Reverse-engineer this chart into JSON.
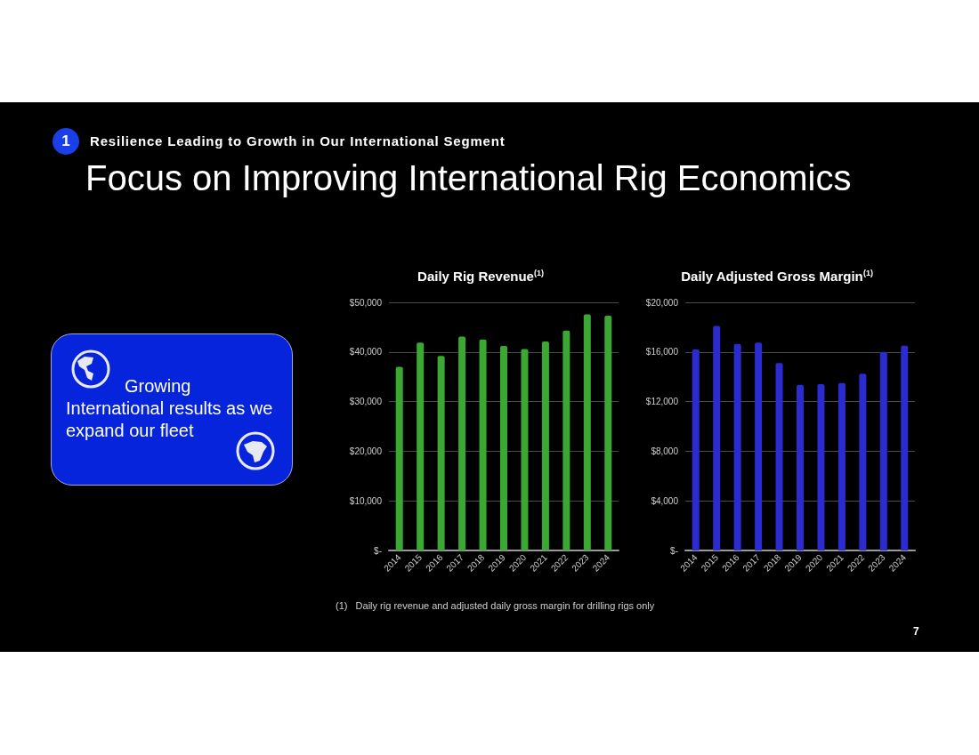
{
  "chart_data": [
    {
      "type": "other",
      "title": "Focus on Improving International Rig Economics",
      "subtitle": "Resilience Leading to Growth in Our International Segment",
      "annotations": [
        "1",
        "Growing International results as we expand our fleet",
        "(1)   Daily rig revenue and adjusted daily gross margin for drilling rigs only",
        "7"
      ]
    },
    {
      "type": "bar",
      "title": "Daily Rig Revenue$^{(1)}$",
      "categories": [
        "2014",
        "2015",
        "2016",
        "2017",
        "2018",
        "2019",
        "2020",
        "2021",
        "2022",
        "2023",
        "2024"
      ],
      "values": [
        37000,
        41900,
        39200,
        43100,
        42500,
        41200,
        40600,
        42100,
        44300,
        47600,
        47300
      ],
      "color": "#3aa832",
      "ylim": [
        0,
        50000
      ],
      "yticks": [
        {
          "value": 0,
          "label": "$-"
        },
        {
          "value": 10000,
          "label": "$10,000"
        },
        {
          "value": 20000,
          "label": "$20,000"
        },
        {
          "value": 30000,
          "label": "$30,000"
        },
        {
          "value": 40000,
          "label": "$40,000"
        },
        {
          "value": 50000,
          "label": "$50,000"
        }
      ],
      "grid": "y"
    },
    {
      "type": "bar",
      "title": "Daily Adjusted Gross Margin$^{(1)}$",
      "categories": [
        "2014",
        "2015",
        "2016",
        "2017",
        "2018",
        "2019",
        "2020",
        "2021",
        "2022",
        "2023",
        "2024"
      ],
      "values": [
        16200,
        18100,
        16650,
        16750,
        15100,
        13350,
        13400,
        13500,
        14250,
        16000,
        16500
      ],
      "color": "#2b2bd0",
      "ylim": [
        0,
        20000
      ],
      "yticks": [
        {
          "value": 0,
          "label": "$-"
        },
        {
          "value": 4000,
          "label": "$4,000"
        },
        {
          "value": 8000,
          "label": "$8,000"
        },
        {
          "value": 12000,
          "label": "$12,000"
        },
        {
          "value": 16000,
          "label": "$16,000"
        },
        {
          "value": 20000,
          "label": "$20,000"
        }
      ],
      "grid": "y"
    }
  ]
}
